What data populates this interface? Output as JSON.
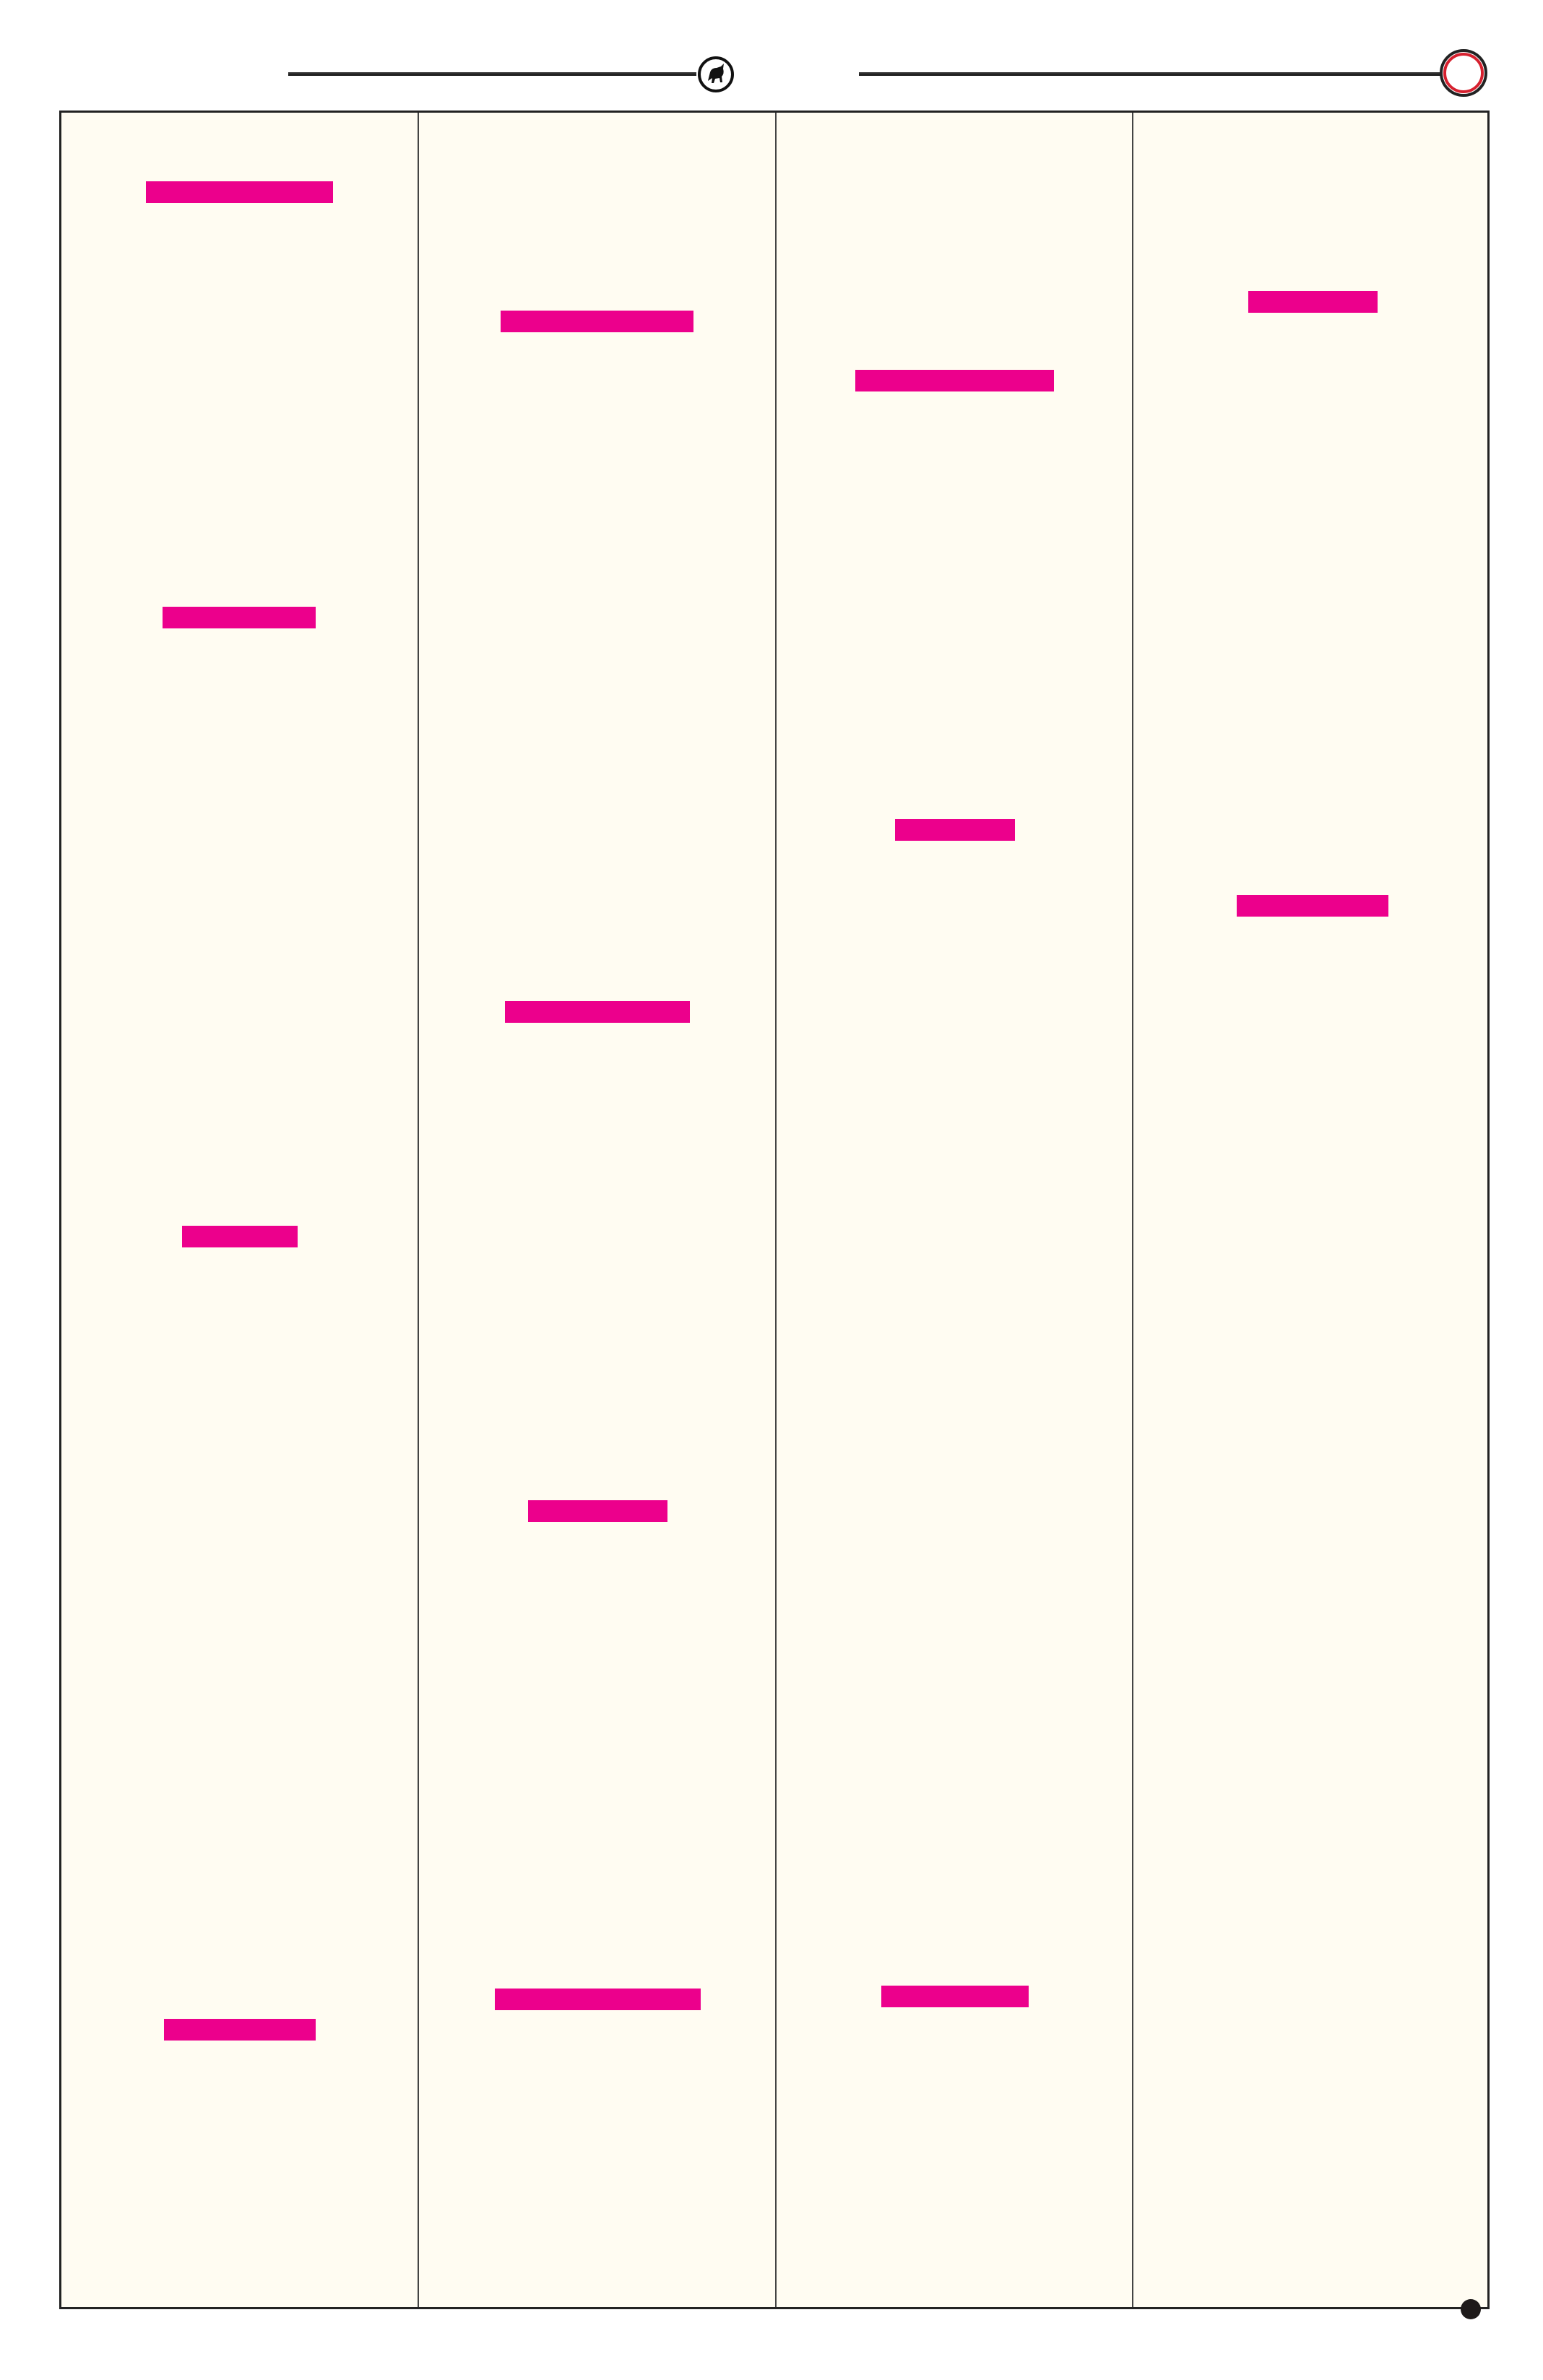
{
  "header": {
    "emblem_icon": "bull-emblem-icon",
    "marker_icon": "red-ring-icon"
  },
  "colors": {
    "highlight_bar": "#ec008c",
    "page_background": "#fffcf2",
    "rule": "#222222",
    "ring_accent": "#d6202e"
  },
  "columns": [
    {
      "highlight_bars": 4
    },
    {
      "highlight_bars": 4
    },
    {
      "highlight_bars": 3
    },
    {
      "highlight_bars": 2
    }
  ],
  "footer": {
    "marker_icon": "dot-icon"
  }
}
